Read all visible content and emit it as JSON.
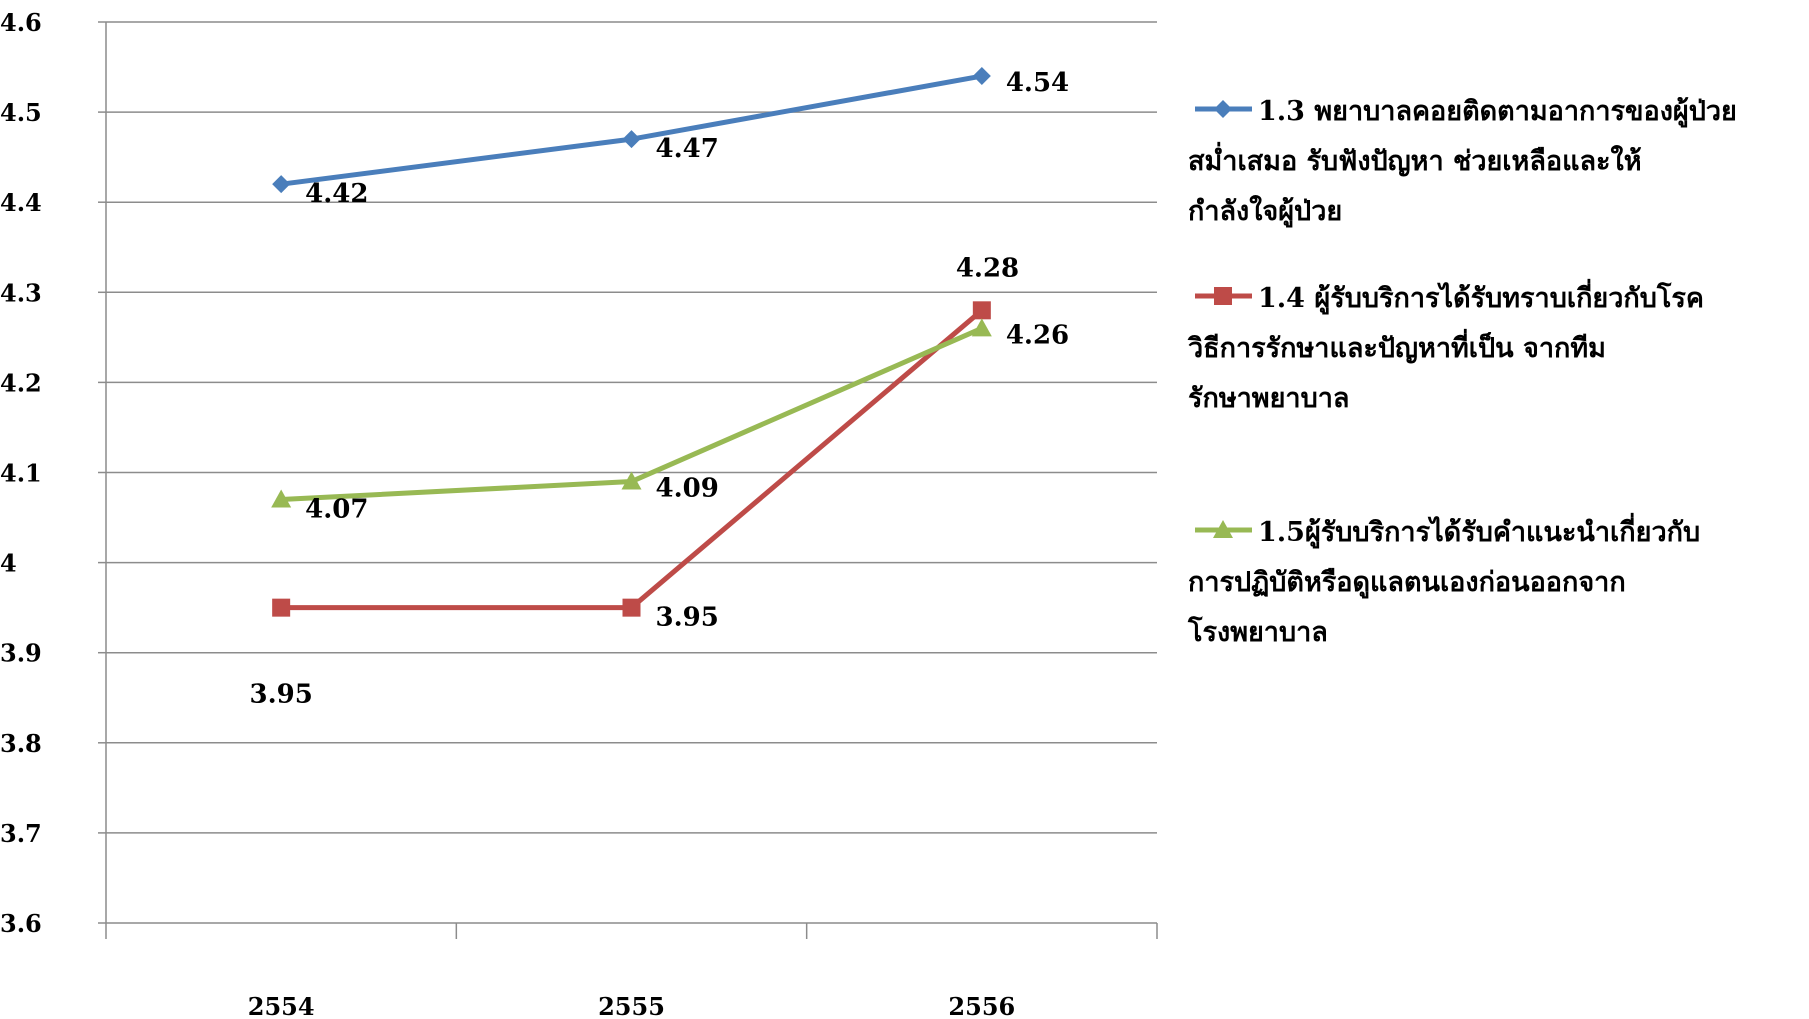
{
  "chart_data": {
    "type": "line",
    "categories": [
      "2554",
      "2555",
      "2556"
    ],
    "ylim": [
      3.6,
      4.6
    ],
    "yticks": [
      "4.6",
      "4.5",
      "4.4",
      "4.3",
      "4.2",
      "4.1",
      "4",
      "3.9",
      "3.8",
      "3.7",
      "3.6"
    ],
    "grid": true,
    "legend_position": "right",
    "series": [
      {
        "name_lines": [
          "1.3 พยาบาลคอยติดตามอาการของผู้ป่วย",
          "สม่ำเสมอ รับฟังปัญหา ช่วยเหลือและให้",
          "กำลังใจผู้ป่วย"
        ],
        "values": [
          4.42,
          4.47,
          4.54
        ],
        "labels": [
          "4.42",
          "4.47",
          "4.54"
        ],
        "color": "#4a7ebb",
        "marker": "diamond"
      },
      {
        "name_lines": [
          "1.4 ผู้รับบริการได้รับทราบเกี่ยวกับโรค",
          "วิธีการรักษาและปัญหาที่เป็น จากทีม",
          "รักษาพยาบาล"
        ],
        "values": [
          3.95,
          3.95,
          4.28
        ],
        "labels": [
          "3.95",
          "3.95",
          "4.28"
        ],
        "color": "#be4b48",
        "marker": "square"
      },
      {
        "name_lines": [
          "1.5ผู้รับบริการได้รับคำแนะนำเกี่ยวกับ",
          "การปฏิบัติหรือดูแลตนเองก่อนออกจาก",
          "โรงพยาบาล"
        ],
        "values": [
          4.07,
          4.09,
          4.26
        ],
        "labels": [
          "4.07",
          "4.09",
          "4.26"
        ],
        "color": "#98b954",
        "marker": "triangle"
      }
    ]
  }
}
